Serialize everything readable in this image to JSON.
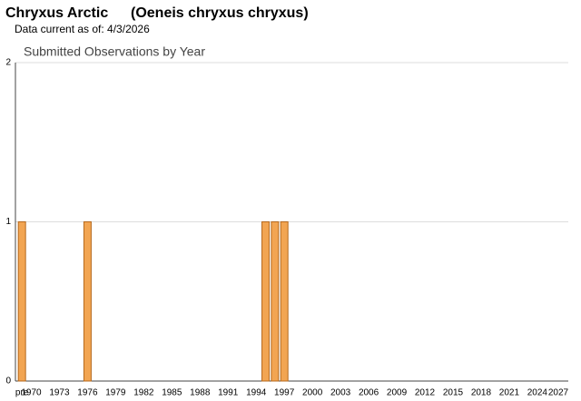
{
  "title": "Chryxus Arctic",
  "scientific_name": "(Oeneis chryxus chryxus)",
  "subtitle": "Data current as of: 4/3/2026",
  "chart_data": {
    "type": "bar",
    "title": "Submitted Observations by Year",
    "categories": [
      "pre",
      "1970",
      null,
      null,
      "1973",
      null,
      null,
      "1976",
      null,
      null,
      "1979",
      null,
      null,
      "1982",
      null,
      null,
      "1985",
      null,
      null,
      "1988",
      null,
      null,
      "1991",
      null,
      null,
      "1994",
      null,
      null,
      "1997",
      null,
      null,
      "2000",
      null,
      null,
      "2003",
      null,
      null,
      "2006",
      null,
      null,
      "2009",
      null,
      null,
      "2012",
      null,
      null,
      "2015",
      null,
      null,
      "2018",
      null,
      null,
      "2021",
      null,
      null,
      "2024",
      null,
      null,
      "2027"
    ],
    "values": [
      1,
      0,
      0,
      0,
      0,
      0,
      0,
      1,
      0,
      0,
      0,
      0,
      0,
      0,
      0,
      0,
      0,
      0,
      0,
      0,
      0,
      0,
      0,
      0,
      0,
      0,
      1,
      1,
      1,
      0,
      0,
      0,
      0,
      0,
      0,
      0,
      0,
      0,
      0,
      0,
      0,
      0,
      0,
      0,
      0,
      0,
      0,
      0,
      0,
      0,
      0,
      0,
      0,
      0,
      0,
      0,
      0,
      0,
      0
    ],
    "color": "#f2a552",
    "ylim": [
      0,
      2
    ],
    "yticks": [
      0,
      1,
      2
    ],
    "grid": true
  }
}
